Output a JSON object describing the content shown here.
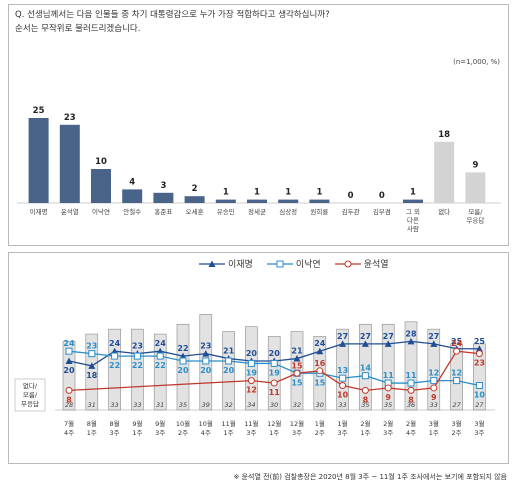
{
  "chart_data": [
    {
      "type": "bar",
      "title": "Q. 선생님께서는 다음 인물들 중 차기 대통령감으로 누가 가장 적합하다고 생각하십니까?",
      "subtitle": "순서는 무작위로 불러드리겠습니다.",
      "note": "(n=1,000, %)",
      "categories": [
        "이재명",
        "윤석열",
        "이낙연",
        "안철수",
        "홍준표",
        "오세훈",
        "유승민",
        "정세균",
        "심상정",
        "원희룡",
        "김두관",
        "김부겸",
        "그 외\n다른\n사람",
        "없다",
        "모름/\n무응답"
      ],
      "values": [
        25,
        23,
        10,
        4,
        3,
        2,
        1,
        1,
        1,
        1,
        0,
        0,
        1,
        18,
        9
      ],
      "bar_colors": [
        "#4a6489",
        "#4a6489",
        "#4a6489",
        "#4a6489",
        "#4a6489",
        "#4a6489",
        "#4a6489",
        "#4a6489",
        "#4a6489",
        "#4a6489",
        "#4a6489",
        "#4a6489",
        "#4a6489",
        "#d3d3d3",
        "#d3d3d3"
      ],
      "ylim": [
        0,
        25
      ]
    },
    {
      "type": "line",
      "legend_placement": "top-center",
      "x": [
        "7월\n4주",
        "8월\n1주",
        "8월\n3주",
        "9월\n1주",
        "9월\n3주",
        "10월\n2주",
        "10월\n4주",
        "11월\n1주",
        "11월\n3주",
        "12월\n1주",
        "12월\n3주",
        "1월\n2주",
        "1월\n3주",
        "2월\n1주",
        "2월\n3주",
        "2월\n4주",
        "3월\n1주",
        "3월\n2주",
        "3월\n3주"
      ],
      "series": [
        {
          "name": "이재명",
          "color": "#1f4e96",
          "marker": "triangle",
          "values": [
            20,
            18,
            24,
            23,
            24,
            22,
            23,
            21,
            20,
            20,
            21,
            24,
            27,
            27,
            27,
            28,
            27,
            25,
            25
          ],
          "label_pos": [
            "below",
            "below",
            "above",
            "above",
            "above",
            "above",
            "above",
            "above",
            "above",
            "above",
            "above",
            "above",
            "above",
            "above",
            "above",
            "above",
            "above",
            "above",
            "above"
          ]
        },
        {
          "name": "이낙연",
          "color": "#2b8fc9",
          "marker": "square",
          "values": [
            24,
            23,
            22,
            22,
            22,
            20,
            20,
            20,
            19,
            19,
            15,
            15,
            13,
            14,
            11,
            11,
            12,
            12,
            10
          ],
          "label_pos": [
            "above",
            "above",
            "below",
            "below",
            "below",
            "below",
            "below",
            "below",
            "below",
            "below",
            "below",
            "below",
            "above",
            "above",
            "above",
            "above",
            "above",
            "above",
            "below"
          ]
        },
        {
          "name": "윤석열",
          "color": "#c0392b",
          "marker": "circle",
          "start_index": 0,
          "values": [
            8,
            null,
            null,
            null,
            null,
            null,
            null,
            null,
            12,
            11,
            15,
            16,
            10,
            8,
            9,
            8,
            9,
            24,
            23
          ],
          "label_pos": [
            "below",
            null,
            null,
            null,
            null,
            null,
            null,
            null,
            "below",
            "below",
            "above",
            "above",
            "below",
            "below",
            "below",
            "below",
            "below",
            "above",
            "below"
          ]
        }
      ],
      "background_bars": {
        "label": "없다/\n모름/\n무응답",
        "values": [
          28,
          31,
          33,
          33,
          31,
          35,
          39,
          32,
          34,
          30,
          32,
          30,
          33,
          35,
          35,
          36,
          33,
          27,
          27
        ]
      },
      "ylim": [
        0,
        40
      ]
    }
  ],
  "footnote": "※ 윤석열 전(前) 검찰총장은 2020년 8월 3주 ~ 11월 1주 조사에서는 보기에 포함되지 않음"
}
